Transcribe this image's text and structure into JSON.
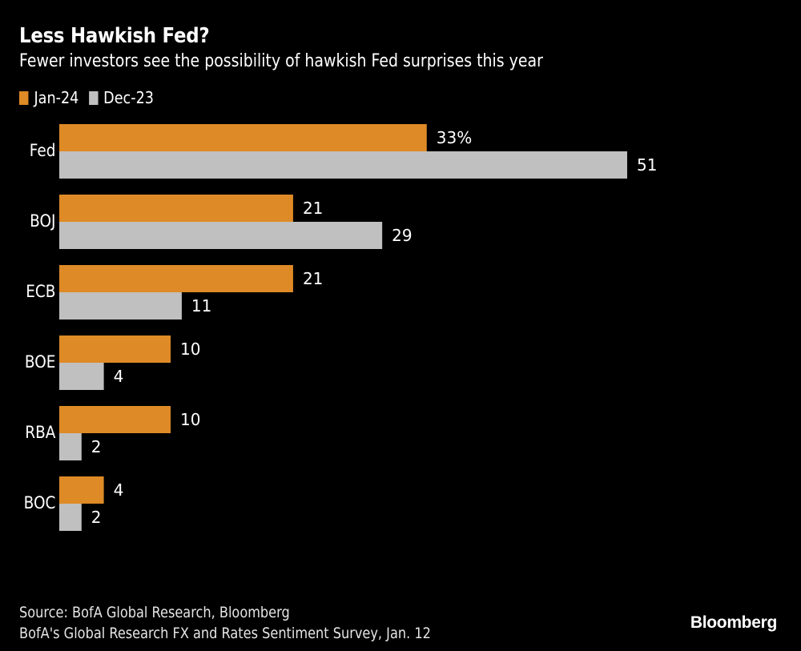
{
  "chart_data": {
    "type": "bar",
    "orientation": "horizontal",
    "title": "Less Hawkish Fed?",
    "subtitle": "Fewer investors see the possibility of hawkish Fed surprises this year",
    "categories": [
      "Fed",
      "BOJ",
      "ECB",
      "BOE",
      "RBA",
      "BOC"
    ],
    "series": [
      {
        "name": "Jan-24",
        "color": "#DE8A26",
        "values": [
          33,
          21,
          21,
          10,
          10,
          4
        ]
      },
      {
        "name": "Dec-23",
        "color": "#C0C0C0",
        "values": [
          51,
          29,
          11,
          4,
          2,
          2
        ]
      }
    ],
    "data_labels": {
      "Jan-24": [
        "33%",
        "21",
        "21",
        "10",
        "10",
        "4"
      ],
      "Dec-23": [
        "51",
        "29",
        "11",
        "4",
        "2",
        "2"
      ]
    },
    "xlabel": "",
    "ylabel": "",
    "xlim": [
      0,
      51
    ],
    "grid": false,
    "legend_position": "top-left",
    "unit": "%"
  },
  "footer": {
    "source": "Source: BofA Global Research, Bloomberg",
    "note": "BofA's Global Research FX and Rates Sentiment Survey, Jan. 12"
  },
  "brand": "Bloomberg",
  "background_color": "#000000"
}
